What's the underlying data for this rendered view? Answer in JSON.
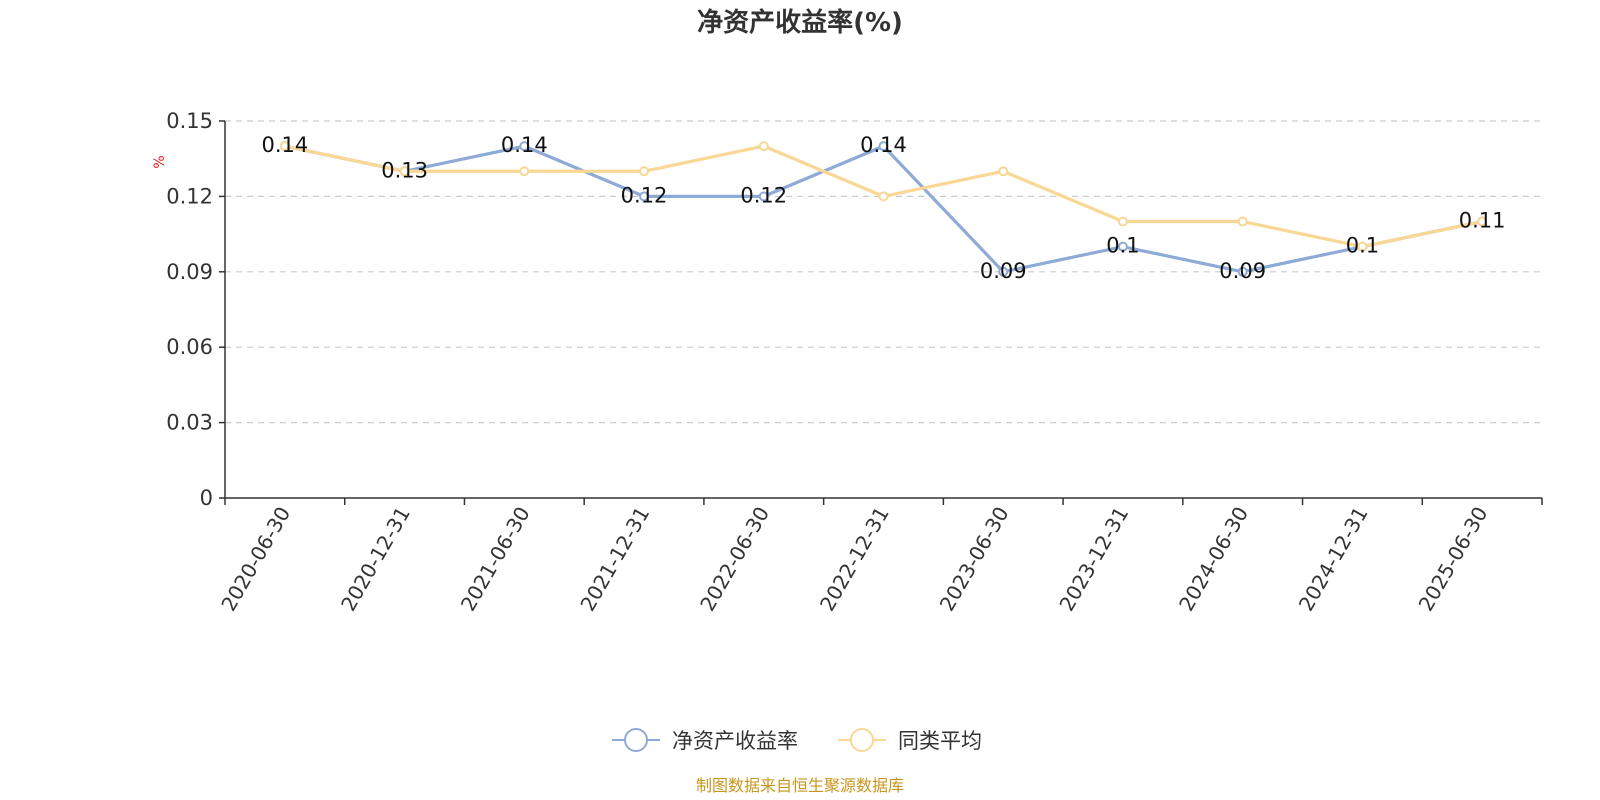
{
  "chart_data": {
    "type": "line",
    "title": "净资产收益率(%)",
    "ylabel": "%",
    "categories": [
      "2020-06-30",
      "2020-12-31",
      "2021-06-30",
      "2021-12-31",
      "2022-06-30",
      "2022-12-31",
      "2023-06-30",
      "2023-12-31",
      "2024-06-30",
      "2024-12-31",
      "2025-06-30"
    ],
    "series": [
      {
        "name": "净资产收益率",
        "color": "#8eaad6",
        "values": [
          0.14,
          0.13,
          0.14,
          0.12,
          0.12,
          0.14,
          0.09,
          0.1,
          0.09,
          0.1,
          0.11
        ],
        "labels": [
          "0.14",
          "0.13",
          "0.14",
          "0.12",
          "0.12",
          "0.14",
          "0.09",
          "0.1",
          "0.09",
          "0.1",
          "0.11"
        ]
      },
      {
        "name": "同类平均",
        "color": "#f9d794",
        "values": [
          0.14,
          0.13,
          0.13,
          0.13,
          0.14,
          0.12,
          0.13,
          0.11,
          0.11,
          0.1,
          0.11
        ]
      }
    ],
    "ylim": [
      0,
      0.15
    ],
    "yticks": [
      "0",
      "0.03",
      "0.06",
      "0.09",
      "0.12",
      "0.15"
    ],
    "grid": true,
    "legend_position": "bottom"
  },
  "source_text": "制图数据来自恒生聚源数据库"
}
